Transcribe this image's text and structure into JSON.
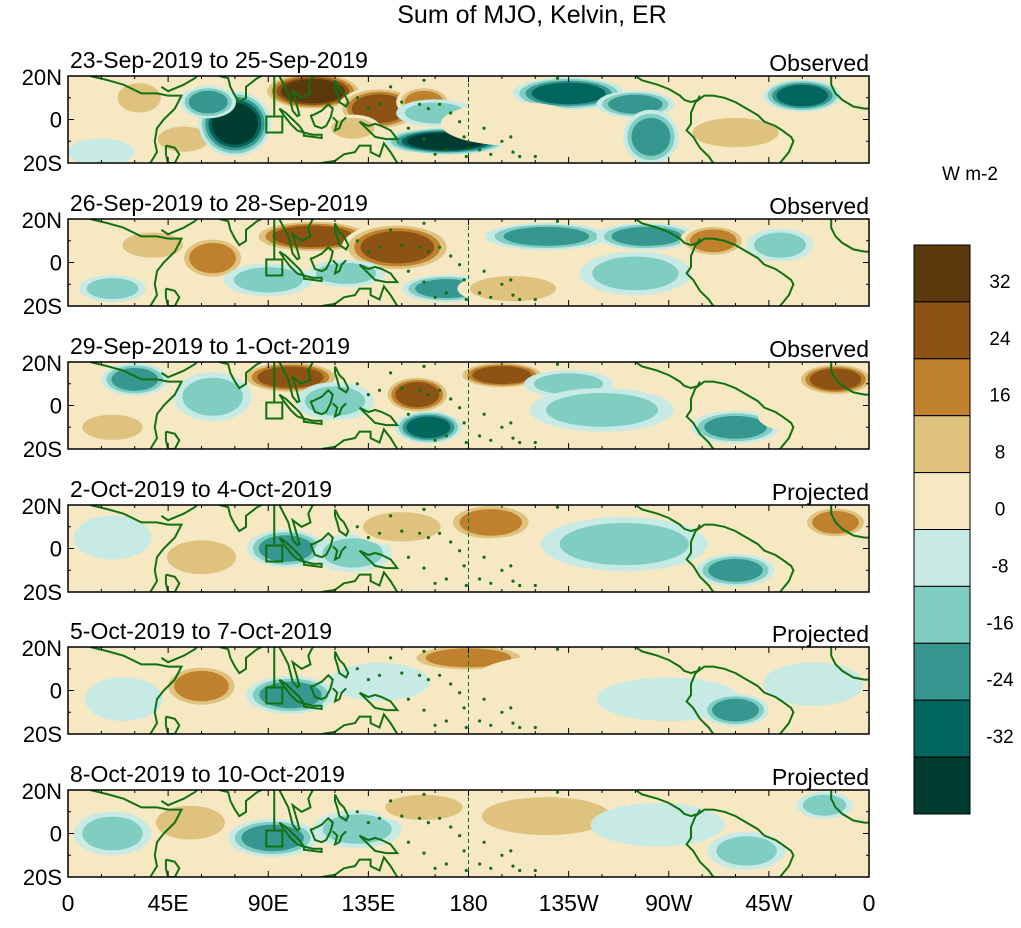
{
  "chart_data": {
    "type": "heatmap",
    "title": "Sum of MJO, Kelvin, ER",
    "colorbar": {
      "units": "W m-2",
      "ticks": [
        "32",
        "24",
        "16",
        "8",
        "0",
        "-8",
        "-16",
        "-24",
        "-32"
      ],
      "levels": [
        40,
        32,
        24,
        16,
        8,
        0,
        -8,
        -16,
        -24,
        -32,
        -40
      ],
      "colors": [
        "#5a3a0d",
        "#8c5314",
        "#bf812d",
        "#dfc27d",
        "#f6e8c3",
        "#c7eae5",
        "#80cdc1",
        "#35978f",
        "#01665e",
        "#003c30"
      ]
    },
    "x_ticks": [
      "0",
      "45E",
      "90E",
      "135E",
      "180",
      "135W",
      "90W",
      "45W",
      "0"
    ],
    "x_range": [
      0,
      360
    ],
    "y_ticks": [
      "20N",
      "0",
      "20S"
    ],
    "y_range": [
      -20,
      20
    ],
    "panels": [
      {
        "date_range": "23-Sep-2019 to 25-Sep-2019",
        "label": "Observed",
        "anomalies": [
          {
            "lon": 32,
            "lat": 10,
            "rlon": 10,
            "rlat": 7,
            "value": 12
          },
          {
            "lon": 52,
            "lat": -9,
            "rlon": 12,
            "rlat": 6,
            "value": 10
          },
          {
            "lon": 75,
            "lat": -2,
            "rlon": 13,
            "rlat": 12,
            "value": -36
          },
          {
            "lon": 63,
            "lat": 8,
            "rlon": 10,
            "rlat": 6,
            "value": -22
          },
          {
            "lon": 110,
            "lat": 13,
            "rlon": 18,
            "rlat": 7,
            "value": 34
          },
          {
            "lon": 140,
            "lat": 5,
            "rlon": 15,
            "rlat": 8,
            "value": 28
          },
          {
            "lon": 128,
            "lat": -4,
            "rlon": 10,
            "rlat": 5,
            "value": 14
          },
          {
            "lon": 160,
            "lat": 8,
            "rlon": 10,
            "rlat": 6,
            "value": 20
          },
          {
            "lon": 170,
            "lat": -10,
            "rlon": 22,
            "rlat": 5,
            "value": -34
          },
          {
            "lon": 165,
            "lat": 3,
            "rlon": 14,
            "rlat": 5,
            "value": -10
          },
          {
            "lon": 225,
            "lat": 12,
            "rlon": 20,
            "rlat": 6,
            "value": -26
          },
          {
            "lon": 255,
            "lat": 7,
            "rlon": 14,
            "rlat": 5,
            "value": -18
          },
          {
            "lon": 262,
            "lat": -8,
            "rlon": 10,
            "rlat": 10,
            "value": -22
          },
          {
            "lon": 300,
            "lat": -6,
            "rlon": 20,
            "rlat": 7,
            "value": 10
          },
          {
            "lon": 330,
            "lat": 11,
            "rlon": 14,
            "rlat": 6,
            "value": -26
          },
          {
            "lon": 200,
            "lat": -2,
            "rlon": 26,
            "rlat": 8,
            "value": 8
          },
          {
            "lon": 15,
            "lat": -15,
            "rlon": 12,
            "rlat": 5,
            "value": -8
          }
        ]
      },
      {
        "date_range": "26-Sep-2019 to 28-Sep-2019",
        "label": "Observed",
        "anomalies": [
          {
            "lon": 38,
            "lat": 8,
            "rlon": 14,
            "rlat": 6,
            "value": 14
          },
          {
            "lon": 65,
            "lat": 2,
            "rlon": 12,
            "rlat": 8,
            "value": 18
          },
          {
            "lon": 90,
            "lat": -8,
            "rlon": 16,
            "rlat": 6,
            "value": -12
          },
          {
            "lon": 110,
            "lat": 12,
            "rlon": 22,
            "rlat": 6,
            "value": 30
          },
          {
            "lon": 148,
            "lat": 7,
            "rlon": 20,
            "rlat": 9,
            "value": 32
          },
          {
            "lon": 170,
            "lat": -12,
            "rlon": 16,
            "rlat": 5,
            "value": -18
          },
          {
            "lon": 125,
            "lat": -5,
            "rlon": 14,
            "rlat": 5,
            "value": -14
          },
          {
            "lon": 215,
            "lat": 12,
            "rlon": 22,
            "rlat": 5,
            "value": -24
          },
          {
            "lon": 260,
            "lat": 12,
            "rlon": 18,
            "rlat": 5,
            "value": -22
          },
          {
            "lon": 255,
            "lat": -5,
            "rlon": 20,
            "rlat": 8,
            "value": -12
          },
          {
            "lon": 290,
            "lat": 10,
            "rlon": 12,
            "rlat": 6,
            "value": 20
          },
          {
            "lon": 320,
            "lat": 8,
            "rlon": 12,
            "rlat": 6,
            "value": -16
          },
          {
            "lon": 200,
            "lat": -12,
            "rlon": 20,
            "rlat": 6,
            "value": 10
          },
          {
            "lon": 20,
            "lat": -12,
            "rlon": 12,
            "rlat": 5,
            "value": -10
          }
        ]
      },
      {
        "date_range": "29-Sep-2019 to 1-Oct-2019",
        "label": "Observed",
        "anomalies": [
          {
            "lon": 30,
            "lat": 12,
            "rlon": 12,
            "rlat": 6,
            "value": -22
          },
          {
            "lon": 65,
            "lat": 4,
            "rlon": 14,
            "rlat": 9,
            "value": -14
          },
          {
            "lon": 100,
            "lat": 13,
            "rlon": 18,
            "rlat": 6,
            "value": 28
          },
          {
            "lon": 120,
            "lat": 2,
            "rlon": 14,
            "rlat": 7,
            "value": -12
          },
          {
            "lon": 157,
            "lat": 5,
            "rlon": 12,
            "rlat": 7,
            "value": 26
          },
          {
            "lon": 162,
            "lat": -10,
            "rlon": 12,
            "rlat": 6,
            "value": -26
          },
          {
            "lon": 195,
            "lat": 14,
            "rlon": 16,
            "rlat": 5,
            "value": 32
          },
          {
            "lon": 225,
            "lat": 10,
            "rlon": 16,
            "rlat": 5,
            "value": -10
          },
          {
            "lon": 240,
            "lat": -2,
            "rlon": 26,
            "rlat": 8,
            "value": -10
          },
          {
            "lon": 300,
            "lat": -10,
            "rlon": 16,
            "rlat": 6,
            "value": -20
          },
          {
            "lon": 345,
            "lat": 12,
            "rlon": 14,
            "rlat": 6,
            "value": 26
          },
          {
            "lon": 20,
            "lat": -10,
            "rlon": 14,
            "rlat": 6,
            "value": 10
          },
          {
            "lon": 330,
            "lat": -5,
            "rlon": 16,
            "rlat": 6,
            "value": 6
          }
        ]
      },
      {
        "date_range": "2-Oct-2019 to 4-Oct-2019",
        "label": "Projected",
        "anomalies": [
          {
            "lon": 60,
            "lat": -4,
            "rlon": 16,
            "rlat": 8,
            "value": 12
          },
          {
            "lon": 98,
            "lat": 0,
            "rlon": 14,
            "rlat": 7,
            "value": -18
          },
          {
            "lon": 128,
            "lat": -2,
            "rlon": 14,
            "rlat": 7,
            "value": -14
          },
          {
            "lon": 150,
            "lat": 10,
            "rlon": 18,
            "rlat": 7,
            "value": 16
          },
          {
            "lon": 190,
            "lat": 12,
            "rlon": 16,
            "rlat": 7,
            "value": 22
          },
          {
            "lon": 200,
            "lat": -6,
            "rlon": 26,
            "rlat": 9,
            "value": 8
          },
          {
            "lon": 250,
            "lat": 2,
            "rlon": 30,
            "rlat": 10,
            "value": -10
          },
          {
            "lon": 300,
            "lat": -10,
            "rlon": 14,
            "rlat": 6,
            "value": -22
          },
          {
            "lon": 345,
            "lat": 12,
            "rlon": 12,
            "rlat": 6,
            "value": 18
          },
          {
            "lon": 20,
            "lat": 5,
            "rlon": 14,
            "rlat": 8,
            "value": -8
          }
        ]
      },
      {
        "date_range": "5-Oct-2019 to 7-Oct-2019",
        "label": "Projected",
        "anomalies": [
          {
            "lon": 60,
            "lat": 2,
            "rlon": 14,
            "rlat": 8,
            "value": 20
          },
          {
            "lon": 100,
            "lat": -2,
            "rlon": 16,
            "rlat": 7,
            "value": -18
          },
          {
            "lon": 140,
            "lat": 4,
            "rlon": 18,
            "rlat": 7,
            "value": -8
          },
          {
            "lon": 180,
            "lat": 15,
            "rlon": 22,
            "rlat": 5,
            "value": 18
          },
          {
            "lon": 220,
            "lat": 5,
            "rlon": 30,
            "rlat": 9,
            "value": 8
          },
          {
            "lon": 270,
            "lat": -4,
            "rlon": 26,
            "rlat": 8,
            "value": -8
          },
          {
            "lon": 300,
            "lat": -9,
            "rlon": 12,
            "rlat": 6,
            "value": -18
          },
          {
            "lon": 335,
            "lat": 3,
            "rlon": 18,
            "rlat": 8,
            "value": -6
          },
          {
            "lon": 25,
            "lat": -4,
            "rlon": 14,
            "rlat": 8,
            "value": -8
          }
        ]
      },
      {
        "date_range": "8-Oct-2019 to 10-Oct-2019",
        "label": "Projected",
        "anomalies": [
          {
            "lon": 55,
            "lat": 5,
            "rlon": 16,
            "rlat": 8,
            "value": 14
          },
          {
            "lon": 92,
            "lat": -2,
            "rlon": 16,
            "rlat": 7,
            "value": -18
          },
          {
            "lon": 130,
            "lat": 2,
            "rlon": 16,
            "rlat": 7,
            "value": -12
          },
          {
            "lon": 160,
            "lat": 12,
            "rlon": 18,
            "rlat": 6,
            "value": 10
          },
          {
            "lon": 215,
            "lat": 8,
            "rlon": 30,
            "rlat": 9,
            "value": 10
          },
          {
            "lon": 265,
            "lat": 4,
            "rlon": 24,
            "rlat": 8,
            "value": -8
          },
          {
            "lon": 305,
            "lat": -8,
            "rlon": 14,
            "rlat": 7,
            "value": -16
          },
          {
            "lon": 340,
            "lat": 13,
            "rlon": 10,
            "rlat": 5,
            "value": -10
          },
          {
            "lon": 20,
            "lat": 0,
            "rlon": 14,
            "rlat": 8,
            "value": -10
          }
        ]
      }
    ]
  }
}
